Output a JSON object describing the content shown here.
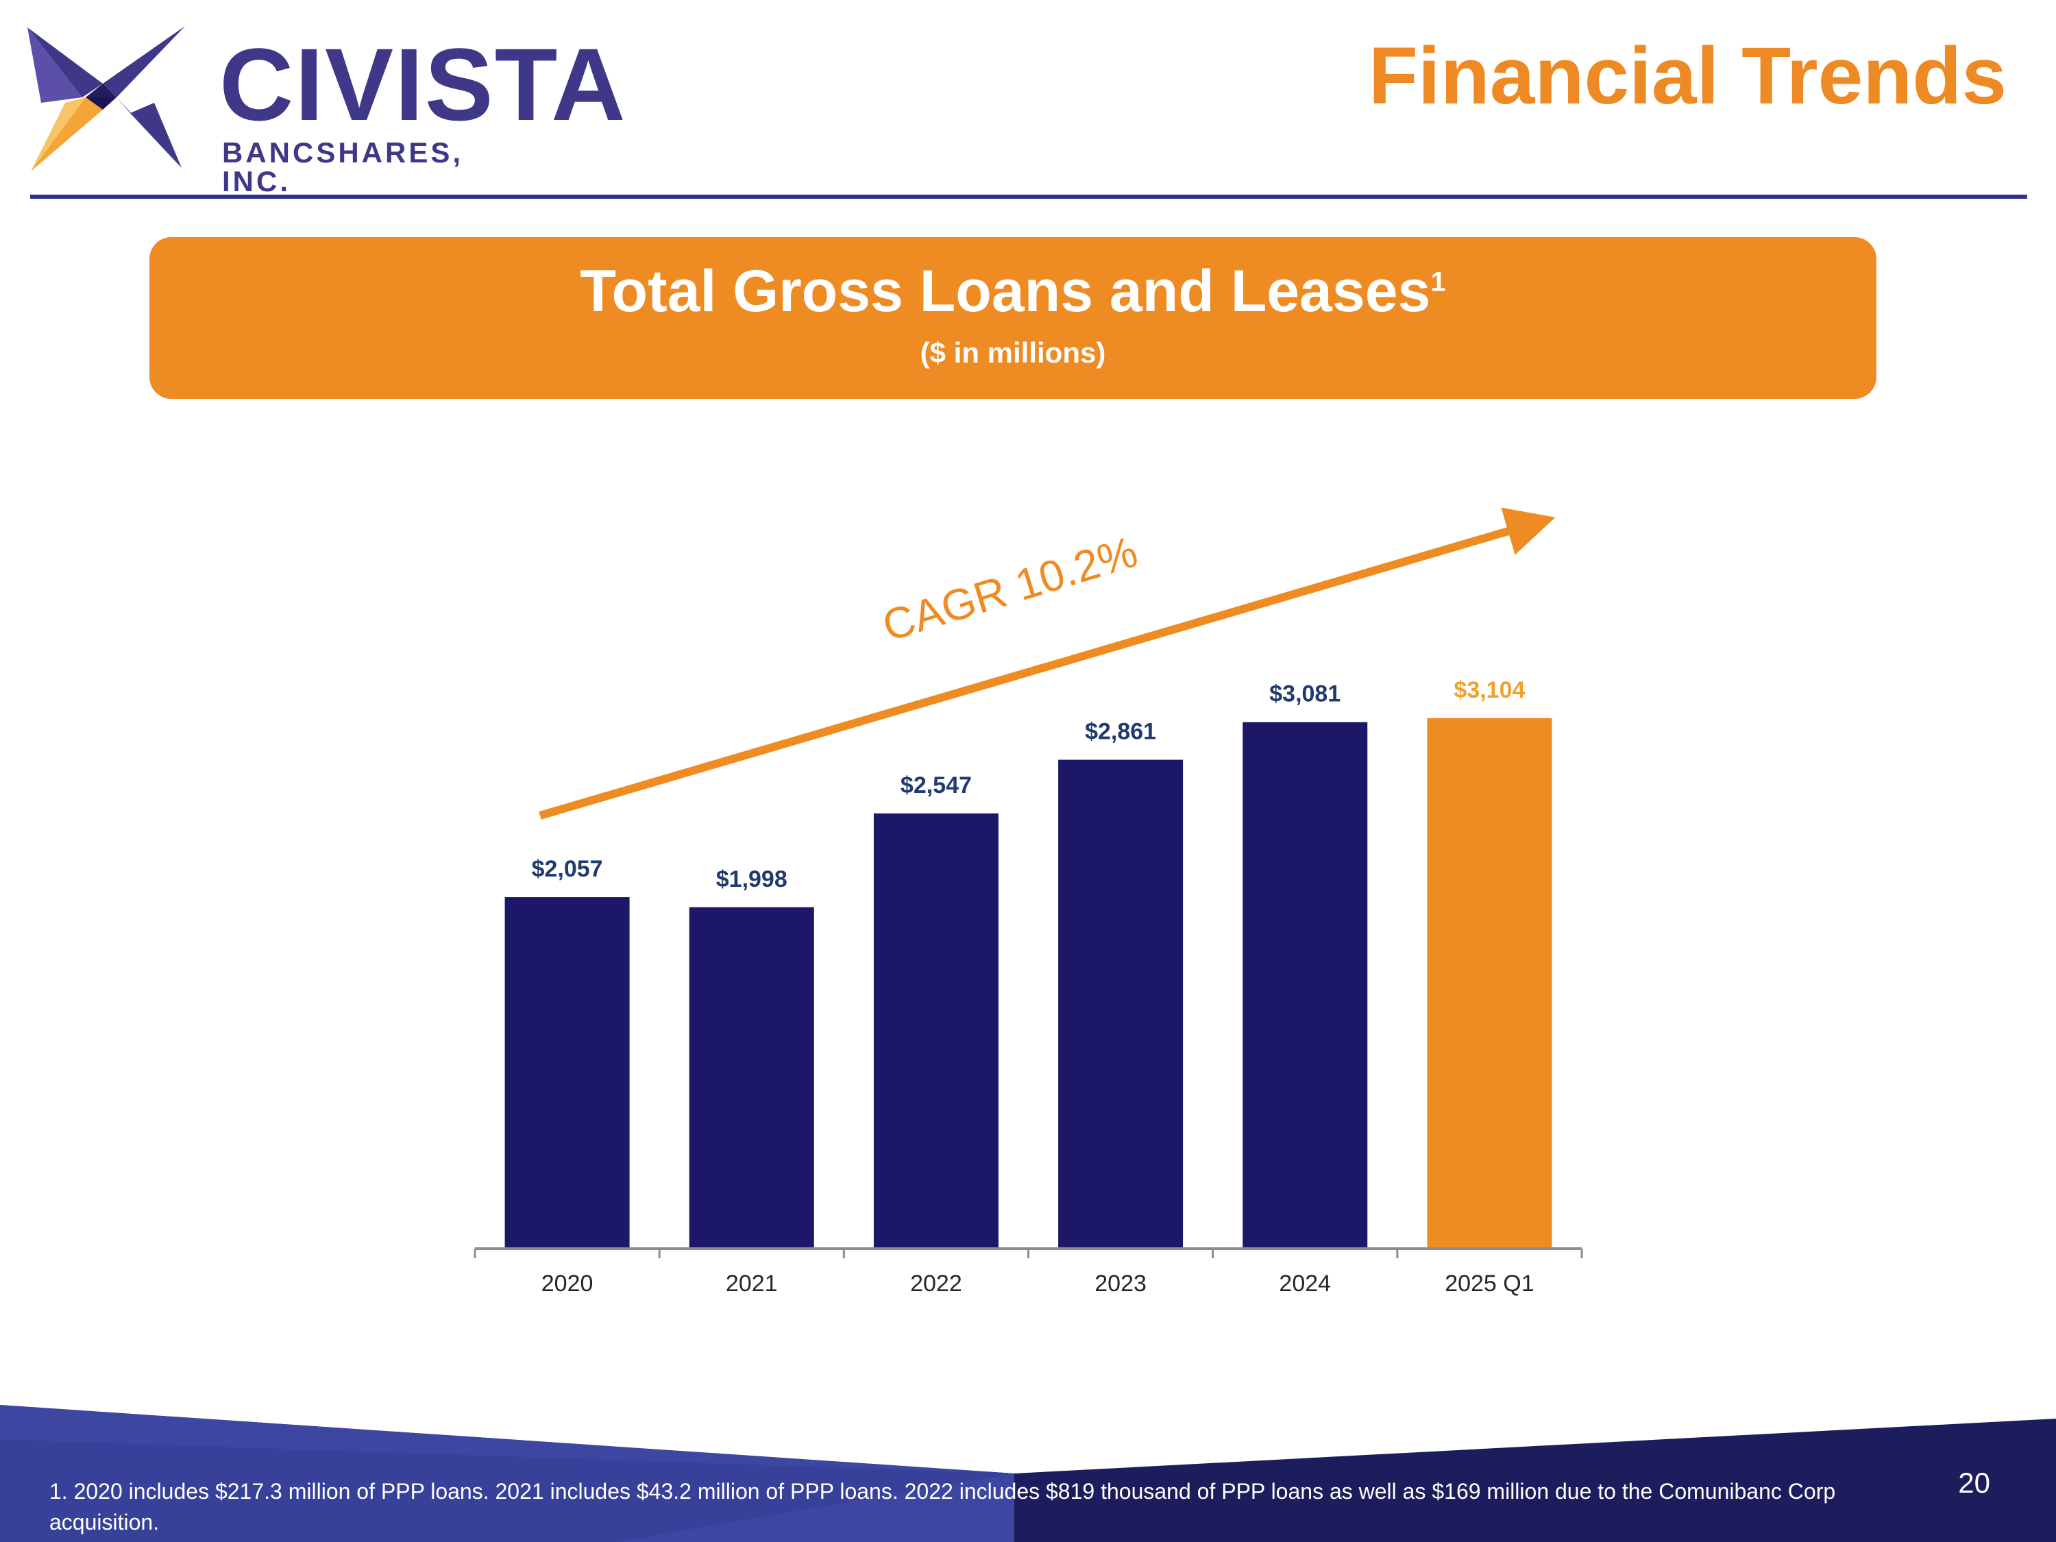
{
  "brand": {
    "name": "CIVISTA",
    "subname": "BANCSHARES, INC.",
    "logo_icon": "civista-star-logo-icon",
    "colors": {
      "navy": "#3f3788",
      "dark_purple": "#2b2064",
      "orange": "#f4a535"
    }
  },
  "page": {
    "title": "Financial Trends",
    "number": "20"
  },
  "banner": {
    "title": "Total Gross Loans and Leases",
    "superscript": "1",
    "subtitle": "($ in millions)"
  },
  "annotation": {
    "cagr_label": "CAGR 10.2%",
    "arrow_icon": "trend-arrow-icon"
  },
  "chart_data": {
    "type": "bar",
    "title": "Total Gross Loans and Leases",
    "subtitle": "($ in millions)",
    "categories": [
      "2020",
      "2021",
      "2022",
      "2023",
      "2024",
      "2025 Q1"
    ],
    "values": [
      2057,
      1998,
      2547,
      2861,
      3081,
      3104
    ],
    "value_labels": [
      "$2,057",
      "$1,998",
      "$2,547",
      "$2,861",
      "$3,081",
      "$3,104"
    ],
    "bar_colors": [
      "#1c1766",
      "#1c1766",
      "#1c1766",
      "#1c1766",
      "#1c1766",
      "#ef8b23"
    ],
    "label_colors": [
      "#1f3b6e",
      "#1f3b6e",
      "#1f3b6e",
      "#1f3b6e",
      "#1f3b6e",
      "#f0a02e"
    ],
    "ylim": [
      0,
      3104
    ],
    "grid": false,
    "legend": "none"
  },
  "footer": {
    "footnote": "1.  2020 includes $217.3 million of PPP loans. 2021 includes $43.2 million of PPP loans. 2022 includes $819 thousand of PPP loans as well as $169 million due to the Comunibanc Corp acquisition.",
    "colors": {
      "left": "#3d47a1",
      "right": "#1d1d5e"
    }
  }
}
